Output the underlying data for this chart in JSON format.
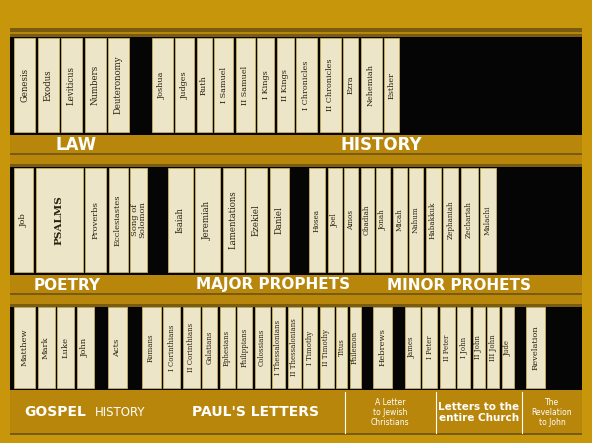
{
  "gold": "#B8860B",
  "dark_gold": "#7A5C10",
  "med_gold": "#C8960A",
  "book_bg": "#EDE5C8",
  "book_border": "#C8B060",
  "label_color": "#F0E0A0",
  "text_color": "#2a2010",
  "black": "#050505",
  "frame_outer": "#8B6000",
  "shelf1_law": [
    "Genesis",
    "Exodus",
    "Leviticus",
    "Numbers",
    "Deuteronomy"
  ],
  "shelf1_hist": [
    "Joshua",
    "Judges",
    "Ruth",
    "I Samuel",
    "II Samuel",
    "I Kings",
    "II Kings",
    "I Chronicles",
    "II Chronicles",
    "Ezra",
    "Nehemiah",
    "Esther"
  ],
  "shelf2_poetry": [
    "Job",
    "PSALMS",
    "Proverbs",
    "Ecclesiastes",
    "Song of\nSolomon"
  ],
  "shelf2_major": [
    "Isaiah",
    "Jeremiah",
    "Lamentations",
    "Ezekiel",
    "Daniel"
  ],
  "shelf2_minor": [
    "Hosea",
    "Joel",
    "Amos",
    "Obadiah",
    "Jonah",
    "Micah",
    "Nahum",
    "Habakkuk",
    "Zephaniah",
    "Zechariah",
    "Malachi"
  ],
  "shelf3_gospel": [
    "Matthew",
    "Mark",
    "Luke",
    "John"
  ],
  "shelf3_hist": [
    "Acts"
  ],
  "shelf3_paul": [
    "Romans",
    "I Corinthians",
    "II Corinthians",
    "Galatians",
    "Ephesians",
    "Philippians",
    "Colossians",
    "I Thessalonians",
    "II Thessalonians",
    "I Timothy",
    "II Timothy",
    "Titus",
    "Philemon"
  ],
  "shelf3_jewish": [
    "Hebrews"
  ],
  "shelf3_church": [
    "James",
    "I Peter",
    "II Peter",
    "I John",
    "II John",
    "III John",
    "Jude"
  ],
  "shelf3_rev": [
    "Revelation"
  ]
}
